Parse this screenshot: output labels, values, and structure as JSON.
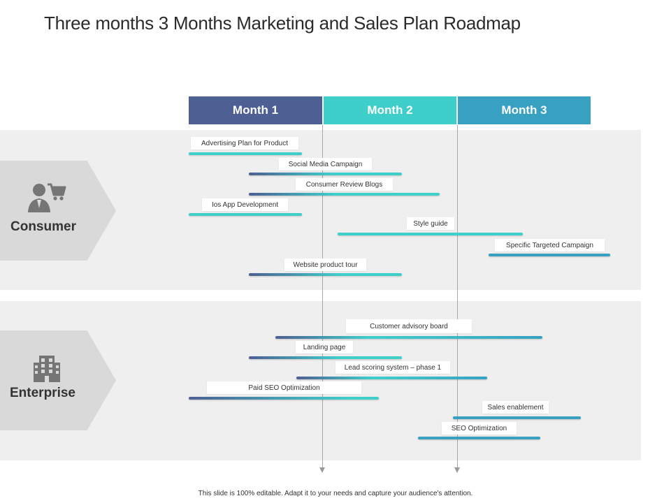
{
  "title": "Three months 3 Months Marketing and Sales Plan Roadmap",
  "months": [
    {
      "label": "Month 1",
      "color": "#4d5f93"
    },
    {
      "label": "Month 2",
      "color": "#3ecfcb"
    },
    {
      "label": "Month 3",
      "color": "#38a1c1"
    }
  ],
  "segments": [
    {
      "label": "Consumer",
      "icon": "consumer-cart-icon"
    },
    {
      "label": "Enterprise",
      "icon": "building-icon"
    }
  ],
  "tasks": {
    "consumer": [
      "Advertising Plan for Product",
      "Social Media Campaign",
      "Consumer Review Blogs",
      "Ios App Development",
      "Style guide",
      "Specific Targeted Campaign",
      "Website product tour"
    ],
    "enterprise": [
      "Customer advisory board",
      "Landing page",
      "Lead scoring system – phase 1",
      "Paid SEO  Optimization",
      "Sales enablement",
      "SEO  Optimization"
    ]
  },
  "footer": "This slide is 100% editable. Adapt it to your needs and capture your audience's attention."
}
